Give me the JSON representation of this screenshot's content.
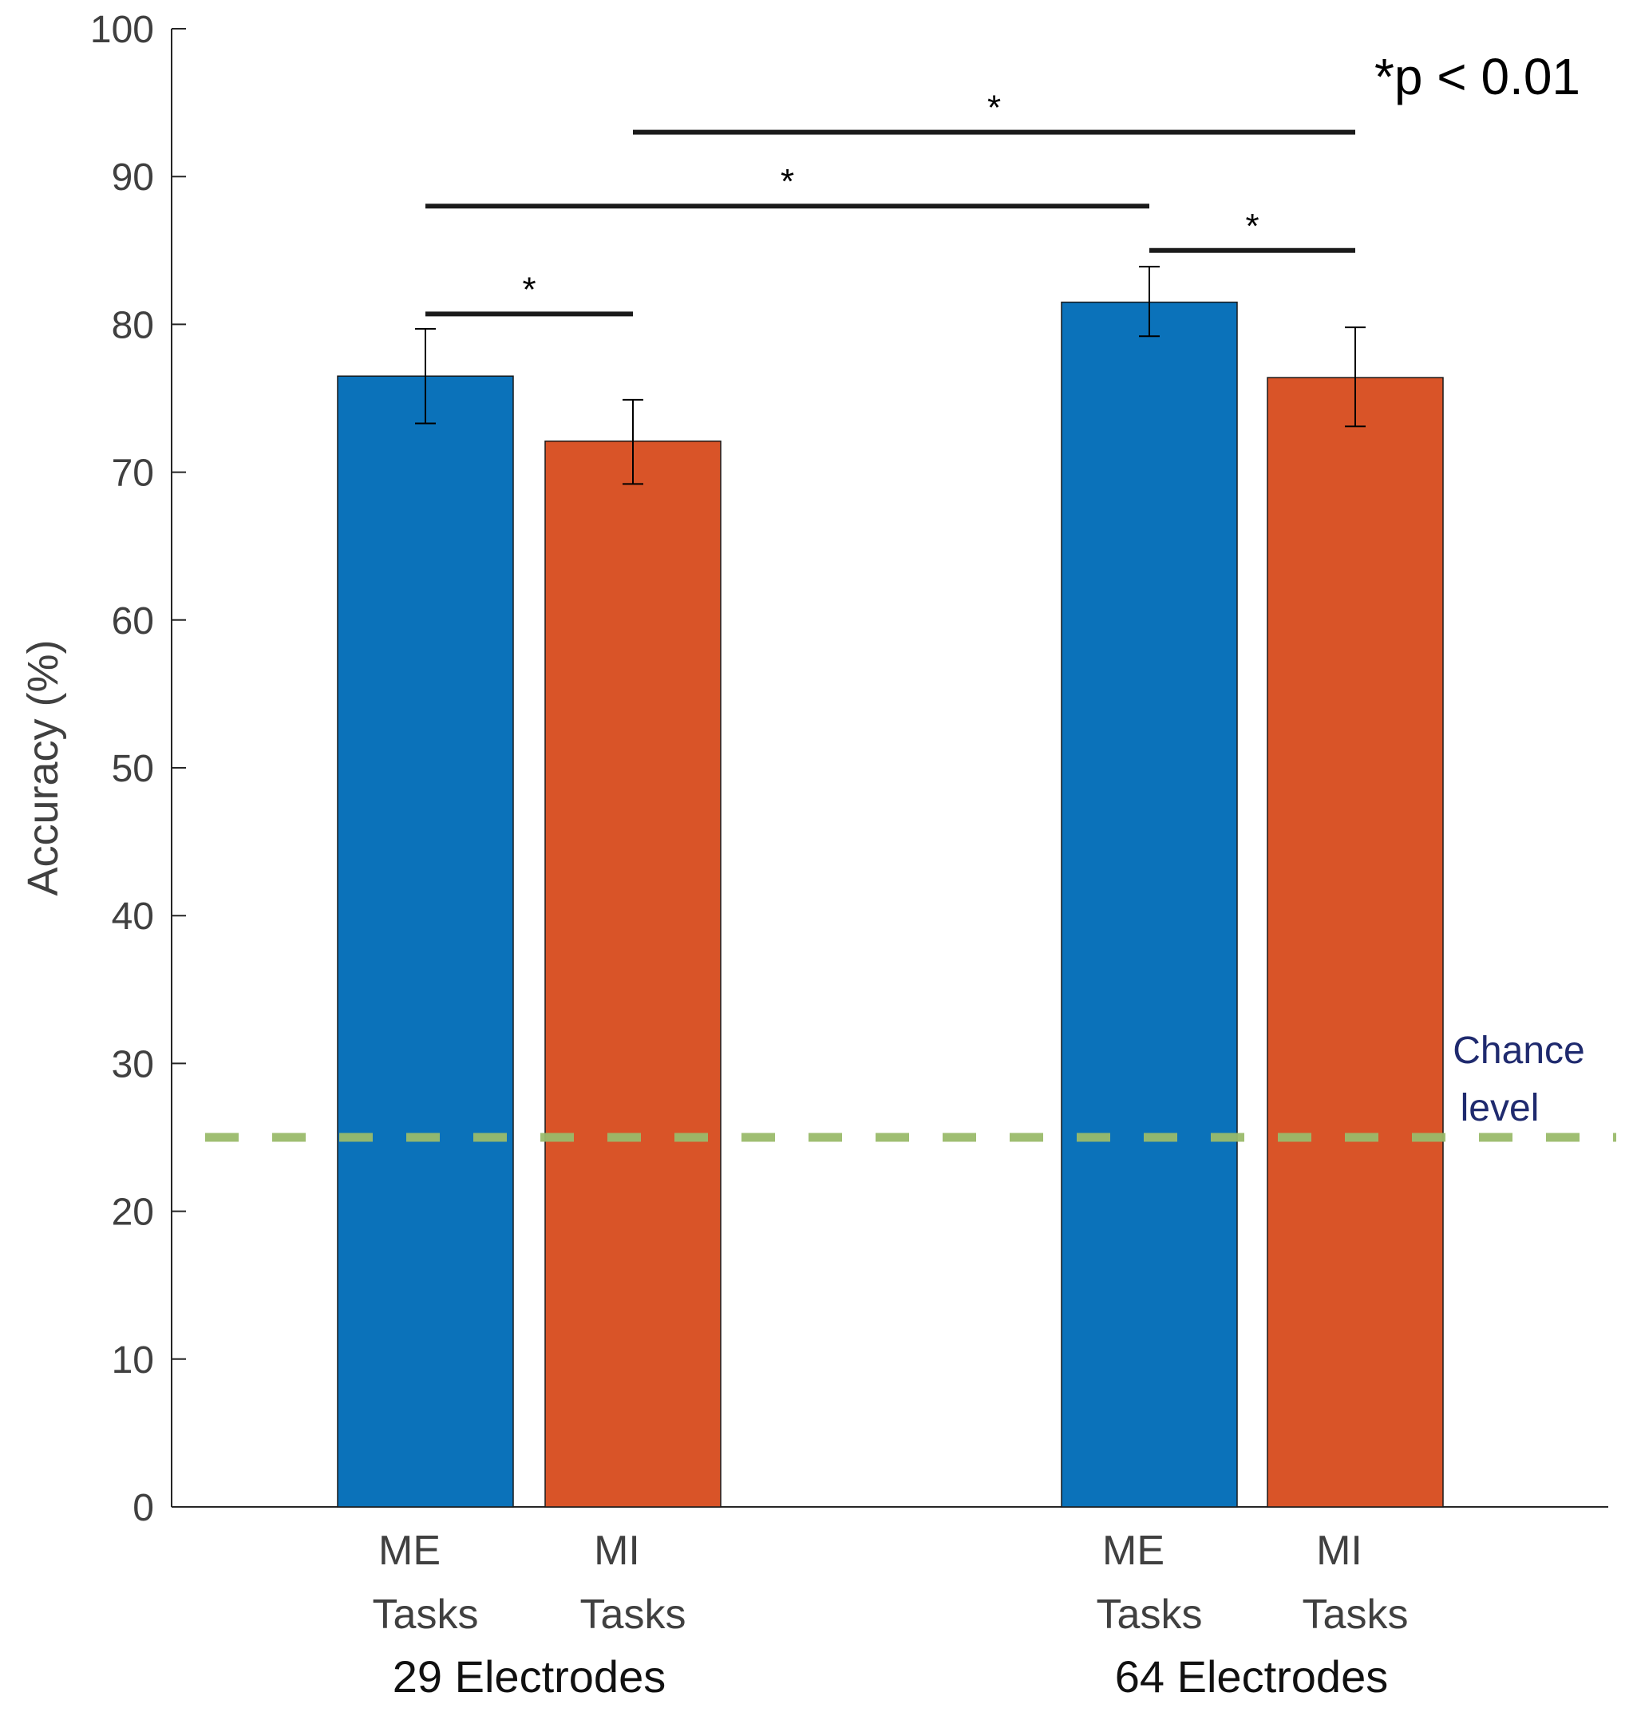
{
  "chart_data": {
    "type": "bar",
    "title": "",
    "xlabel": "",
    "ylabel": "Accuracy (%)",
    "ylim": [
      0,
      100
    ],
    "yticks": [
      0,
      10,
      20,
      30,
      40,
      50,
      60,
      70,
      80,
      90,
      100
    ],
    "groups": [
      {
        "label": "29 Electrodes",
        "bars": [
          {
            "label_line1": "ME",
            "label_line2": "Tasks",
            "value": 76.5,
            "err_low": 73.3,
            "err_high": 79.7,
            "color": "#0b72ba"
          },
          {
            "label_line1": "MI",
            "label_line2": "Tasks",
            "value": 72.1,
            "err_low": 69.2,
            "err_high": 74.9,
            "color": "#d95428"
          }
        ]
      },
      {
        "label": "64 Electrodes",
        "bars": [
          {
            "label_line1": "ME",
            "label_line2": "Tasks",
            "value": 81.5,
            "err_low": 79.2,
            "err_high": 83.9,
            "color": "#0b72ba"
          },
          {
            "label_line1": "MI",
            "label_line2": "Tasks",
            "value": 76.4,
            "err_low": 73.1,
            "err_high": 79.8,
            "color": "#d95428"
          }
        ]
      }
    ],
    "significance": [
      {
        "from_bar": 0,
        "to_bar": 1,
        "y": 80.7,
        "label": "*"
      },
      {
        "from_bar": 0,
        "to_bar": 2,
        "y": 88.0,
        "label": "*"
      },
      {
        "from_bar": 1,
        "to_bar": 3,
        "y": 93.0,
        "label": "*"
      },
      {
        "from_bar": 2,
        "to_bar": 3,
        "y": 85.0,
        "label": "*"
      }
    ],
    "annotation": "*p < 0.01",
    "chance_level": {
      "value": 25,
      "label_line1": "Chance",
      "label_line2": "level",
      "color": "#9aba6a"
    }
  }
}
